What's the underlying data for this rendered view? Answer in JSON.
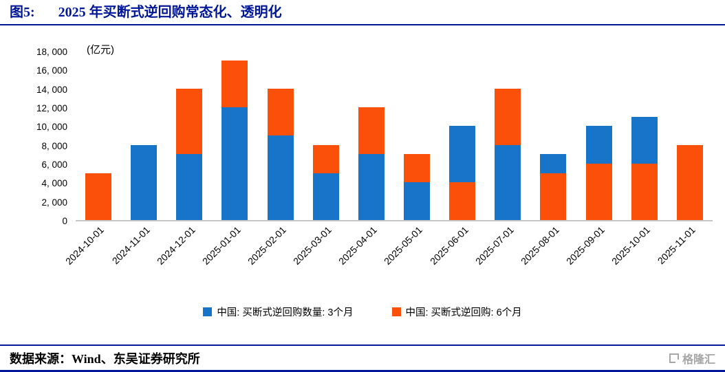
{
  "header": {
    "fig_label": "图5:",
    "title": "2025 年买断式逆回购常态化、透明化"
  },
  "chart_data": {
    "type": "bar",
    "stacked": true,
    "title": "2025 年买断式逆回购常态化、透明化",
    "unit_label": "(亿元)",
    "ylim": [
      0,
      18000
    ],
    "ytick_step": 2000,
    "yticks": [
      "0",
      "2, 000",
      "4, 000",
      "6, 000",
      "8, 000",
      "10, 000",
      "12, 000",
      "14, 000",
      "16, 000",
      "18, 000"
    ],
    "grid": false,
    "legend_position": "bottom",
    "categories": [
      "2024-10-01",
      "2024-11-01",
      "2024-12-01",
      "2025-01-01",
      "2025-02-01",
      "2025-03-01",
      "2025-04-01",
      "2025-05-01",
      "2025-06-01",
      "2025-07-01",
      "2025-08-01",
      "2025-09-01",
      "2025-10-01",
      "2025-11-01"
    ],
    "series": [
      {
        "name": "中国: 买断式逆回购数量: 3个月",
        "color": "#1874c8",
        "values": [
          0,
          8000,
          7000,
          12000,
          9000,
          5000,
          7000,
          4000,
          6000,
          8000,
          2000,
          4000,
          5000,
          0
        ]
      },
      {
        "name": "中国: 买断式逆回购: 6个月",
        "color": "#fa500a",
        "values": [
          5000,
          0,
          7000,
          5000,
          5000,
          3000,
          5000,
          3000,
          4000,
          6000,
          5000,
          6000,
          6000,
          8000
        ]
      }
    ],
    "bottom_series_index": [
      1,
      0,
      0,
      0,
      0,
      0,
      0,
      0,
      1,
      0,
      1,
      1,
      1,
      1
    ]
  },
  "footer": {
    "source_label": "数据来源：Wind、东吴证券研究所"
  },
  "watermark": {
    "text": "格隆汇"
  },
  "colors": {
    "accent_navy": "#001699",
    "bar_blue": "#1874c8",
    "bar_orange": "#fa500a",
    "axis_line_gray": "#c6c6c6",
    "watermark_gray": "#a6a6a6"
  }
}
